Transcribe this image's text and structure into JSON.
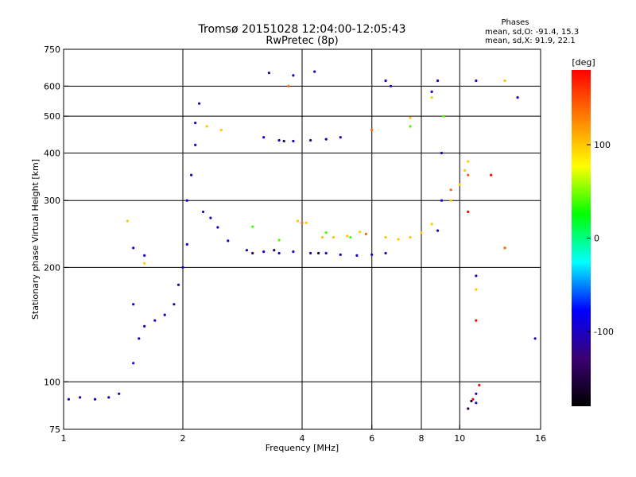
{
  "chart_data": {
    "type": "scatter",
    "title": "Tromsø 20151028 12:04:00-12:05:43",
    "subtitle": "RwPretec (8p)",
    "xlabel": "Frequency [MHz]",
    "ylabel": "Stationary phase Virtual Height [km]",
    "x_scale": "log",
    "y_scale": "log",
    "xlim": [
      1,
      16
    ],
    "ylim": [
      75,
      750
    ],
    "x_ticks": [
      1,
      2,
      4,
      6,
      8,
      10,
      16
    ],
    "x_tick_labels": [
      "1",
      "2",
      "4",
      "6",
      "8",
      "10",
      "16"
    ],
    "x_gridlines": [
      2,
      4,
      6,
      8,
      10
    ],
    "y_ticks": [
      75,
      100,
      200,
      300,
      400,
      500,
      600,
      750
    ],
    "y_tick_labels": [
      "75",
      "100",
      "200",
      "300",
      "400",
      "500",
      "600",
      "750"
    ],
    "y_gridlines": [
      100,
      200,
      300,
      400,
      500,
      600
    ],
    "grid": true,
    "stats": {
      "heading": "Phases",
      "line_o": "mean, sd,O: -91.4, 15.3",
      "line_x": "mean, sd,X:  91.9, 22.1"
    },
    "colorbar": {
      "label": "[deg]",
      "range": [
        -180,
        180
      ],
      "ticks": [
        100,
        0,
        -100
      ],
      "tick_labels": [
        "100",
        "0",
        "-100"
      ],
      "colors": [
        "#000000",
        "#3a0072",
        "#0000ff",
        "#00ffff",
        "#00ff00",
        "#ffff00",
        "#ff8000",
        "#ff0000"
      ]
    },
    "series": [
      {
        "phase": -100,
        "points": [
          [
            1.03,
            90
          ],
          [
            1.1,
            91
          ],
          [
            1.2,
            90
          ],
          [
            1.3,
            91
          ],
          [
            1.38,
            93
          ],
          [
            1.5,
            112
          ],
          [
            1.55,
            130
          ],
          [
            1.6,
            140
          ],
          [
            1.7,
            145
          ],
          [
            1.8,
            150
          ],
          [
            1.9,
            160
          ],
          [
            1.95,
            180
          ],
          [
            2.0,
            200
          ],
          [
            2.05,
            230
          ],
          [
            2.05,
            300
          ],
          [
            2.1,
            350
          ],
          [
            2.15,
            420
          ],
          [
            2.15,
            480
          ],
          [
            2.2,
            540
          ],
          [
            2.25,
            280
          ],
          [
            2.35,
            270
          ],
          [
            2.45,
            255
          ],
          [
            2.6,
            235
          ],
          [
            2.9,
            222
          ],
          [
            3.2,
            220
          ],
          [
            3.5,
            218
          ],
          [
            3.8,
            220
          ],
          [
            4.2,
            218
          ],
          [
            4.6,
            218
          ],
          [
            5.0,
            216
          ],
          [
            5.5,
            215
          ],
          [
            6.0,
            216
          ],
          [
            6.5,
            218
          ],
          [
            3.2,
            440
          ],
          [
            3.5,
            432
          ],
          [
            3.8,
            430
          ],
          [
            4.2,
            432
          ],
          [
            4.6,
            435
          ],
          [
            5.0,
            440
          ],
          [
            3.3,
            650
          ],
          [
            3.8,
            640
          ],
          [
            4.3,
            655
          ],
          [
            1.5,
            160
          ],
          [
            1.5,
            225
          ],
          [
            1.6,
            215
          ],
          [
            9.0,
            400
          ],
          [
            9.0,
            300
          ],
          [
            8.8,
            250
          ],
          [
            8.5,
            580
          ],
          [
            8.8,
            620
          ],
          [
            11,
            620
          ],
          [
            14,
            560
          ],
          [
            15.5,
            130
          ],
          [
            6.5,
            620
          ],
          [
            6.7,
            600
          ],
          [
            11,
            93
          ],
          [
            11,
            88
          ],
          [
            11,
            190
          ]
        ]
      },
      {
        "phase": 100,
        "points": [
          [
            2.3,
            470
          ],
          [
            2.5,
            460
          ],
          [
            6.5,
            240
          ],
          [
            7.0,
            237
          ],
          [
            7.5,
            240
          ],
          [
            8.0,
            247
          ],
          [
            8.5,
            260
          ],
          [
            9.5,
            300
          ],
          [
            10,
            330
          ],
          [
            10.3,
            360
          ],
          [
            10.5,
            380
          ],
          [
            4.5,
            240
          ],
          [
            4.8,
            240
          ],
          [
            5.2,
            242
          ],
          [
            5.6,
            248
          ],
          [
            3.9,
            265
          ],
          [
            4.1,
            262
          ],
          [
            1.45,
            265
          ],
          [
            1.6,
            205
          ],
          [
            7.5,
            495
          ],
          [
            8.5,
            560
          ],
          [
            13,
            620
          ],
          [
            13,
            225
          ],
          [
            11,
            175
          ]
        ]
      },
      {
        "phase": 40,
        "points": [
          [
            4.6,
            247
          ],
          [
            5.3,
            240
          ],
          [
            3.5,
            236
          ],
          [
            3.0,
            256
          ],
          [
            9.1,
            500
          ],
          [
            7.5,
            470
          ]
        ]
      },
      {
        "phase": 140,
        "points": [
          [
            5.8,
            245
          ],
          [
            4.0,
            262
          ],
          [
            6.0,
            460
          ],
          [
            9.5,
            320
          ],
          [
            3.7,
            600
          ],
          [
            10.5,
            350
          ],
          [
            13,
            225
          ]
        ]
      },
      {
        "phase": 180,
        "points": [
          [
            10.5,
            280
          ],
          [
            11,
            145
          ],
          [
            11.2,
            98
          ],
          [
            10.8,
            90
          ],
          [
            12,
            350
          ]
        ]
      },
      {
        "phase": -150,
        "points": [
          [
            3.6,
            430
          ],
          [
            3.4,
            222
          ],
          [
            4.4,
            218
          ],
          [
            3.0,
            218
          ],
          [
            10.5,
            85
          ],
          [
            10.7,
            89
          ]
        ]
      }
    ]
  }
}
